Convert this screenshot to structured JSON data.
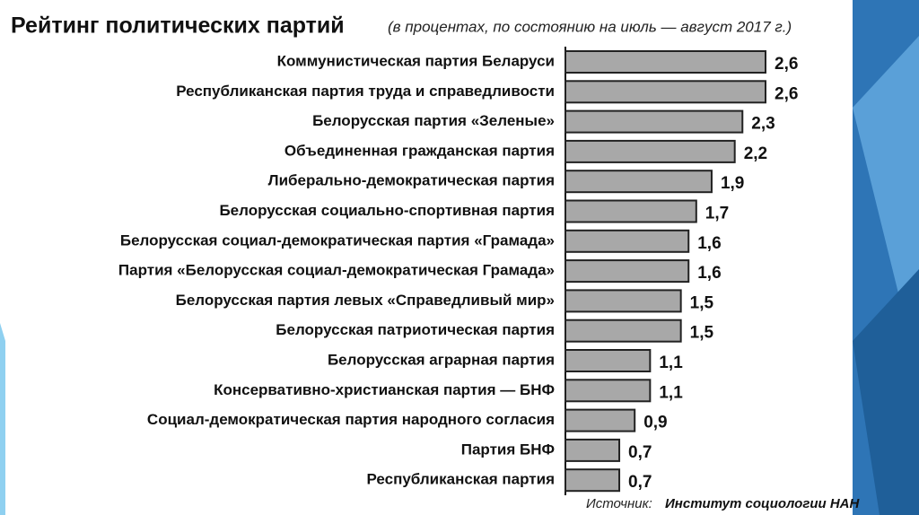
{
  "chart_data": {
    "type": "bar",
    "orientation": "horizontal",
    "title": "Рейтинг политических партий",
    "subtitle": "(в процентах, по состоянию на июль — август 2017 г.)",
    "categories": [
      "Коммунистическая партия Беларуси",
      "Республиканская партия труда и справедливости",
      "Белорусская партия «Зеленые»",
      "Объединенная гражданская партия",
      "Либерально-демократическая партия",
      "Белорусская социально-спортивная партия",
      "Белорусская социал-демократическая партия «Грамада»",
      "Партия «Белорусская социал-демократическая Грамада»",
      "Белорусская партия левых «Справедливый мир»",
      "Белорусская патриотическая партия",
      "Белорусская аграрная партия",
      "Консервативно-христианская партия — БНФ",
      "Социал-демократическая партия народного согласия",
      "Партия БНФ",
      "Республиканская партия"
    ],
    "values": [
      2.6,
      2.6,
      2.3,
      2.2,
      1.9,
      1.7,
      1.6,
      1.6,
      1.5,
      1.5,
      1.1,
      1.1,
      0.9,
      0.7,
      0.7
    ],
    "value_labels": [
      "2,6",
      "2,6",
      "2,3",
      "2,2",
      "1,9",
      "1,7",
      "1,6",
      "1,6",
      "1,5",
      "1,5",
      "1,1",
      "1,1",
      "0,9",
      "0,7",
      "0,7"
    ],
    "color": "#a8a8a8",
    "source_label": "Источник:",
    "source": "Институт социологии НАН"
  }
}
